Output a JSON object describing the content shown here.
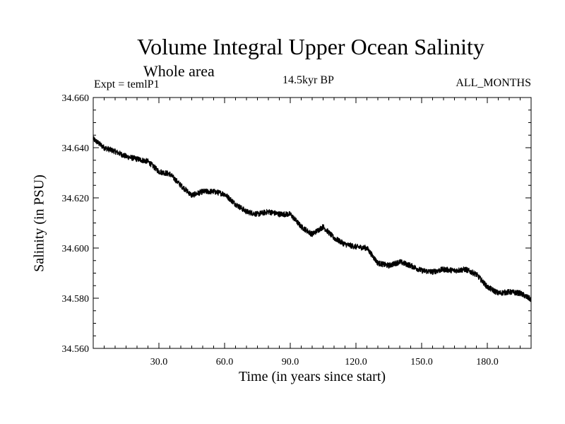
{
  "chart_data": {
    "type": "line",
    "title": "Volume Integral Upper Ocean Salinity",
    "subtitle": "Whole area",
    "experiment": "Expt = temlP1",
    "period": "14.5kyr BP",
    "months": "ALL_MONTHS",
    "xlabel": "Time (in years since start)",
    "ylabel": "Salinity (in PSU)",
    "xlim": [
      0,
      200
    ],
    "ylim": [
      34.56,
      34.66
    ],
    "xticks": [
      30,
      60,
      90,
      120,
      150,
      180
    ],
    "xtick_labels": [
      "30.0",
      "60.0",
      "90.0",
      "120.0",
      "150.0",
      "180.0"
    ],
    "yticks": [
      34.56,
      34.58,
      34.6,
      34.62,
      34.64,
      34.66
    ],
    "ytick_labels": [
      "34.560",
      "34.580",
      "34.600",
      "34.620",
      "34.640",
      "34.660"
    ],
    "grid": false,
    "series": [
      {
        "name": "salinity",
        "x": [
          0,
          5,
          10,
          15,
          20,
          25,
          30,
          35,
          40,
          45,
          50,
          55,
          60,
          65,
          70,
          75,
          80,
          85,
          90,
          95,
          100,
          105,
          110,
          115,
          120,
          125,
          130,
          135,
          140,
          145,
          150,
          155,
          160,
          165,
          170,
          175,
          180,
          185,
          190,
          195,
          200
        ],
        "values": [
          34.6435,
          34.64,
          34.6385,
          34.6365,
          34.6355,
          34.6345,
          34.6305,
          34.6295,
          34.625,
          34.621,
          34.6225,
          34.6225,
          34.6215,
          34.6175,
          34.6145,
          34.6135,
          34.6145,
          34.6135,
          34.6135,
          34.6085,
          34.6055,
          34.6085,
          34.604,
          34.6015,
          34.6005,
          34.6,
          34.594,
          34.593,
          34.5945,
          34.593,
          34.591,
          34.5905,
          34.5915,
          34.591,
          34.5915,
          34.5895,
          34.5845,
          34.582,
          34.5825,
          34.582,
          34.5795
        ]
      }
    ]
  }
}
